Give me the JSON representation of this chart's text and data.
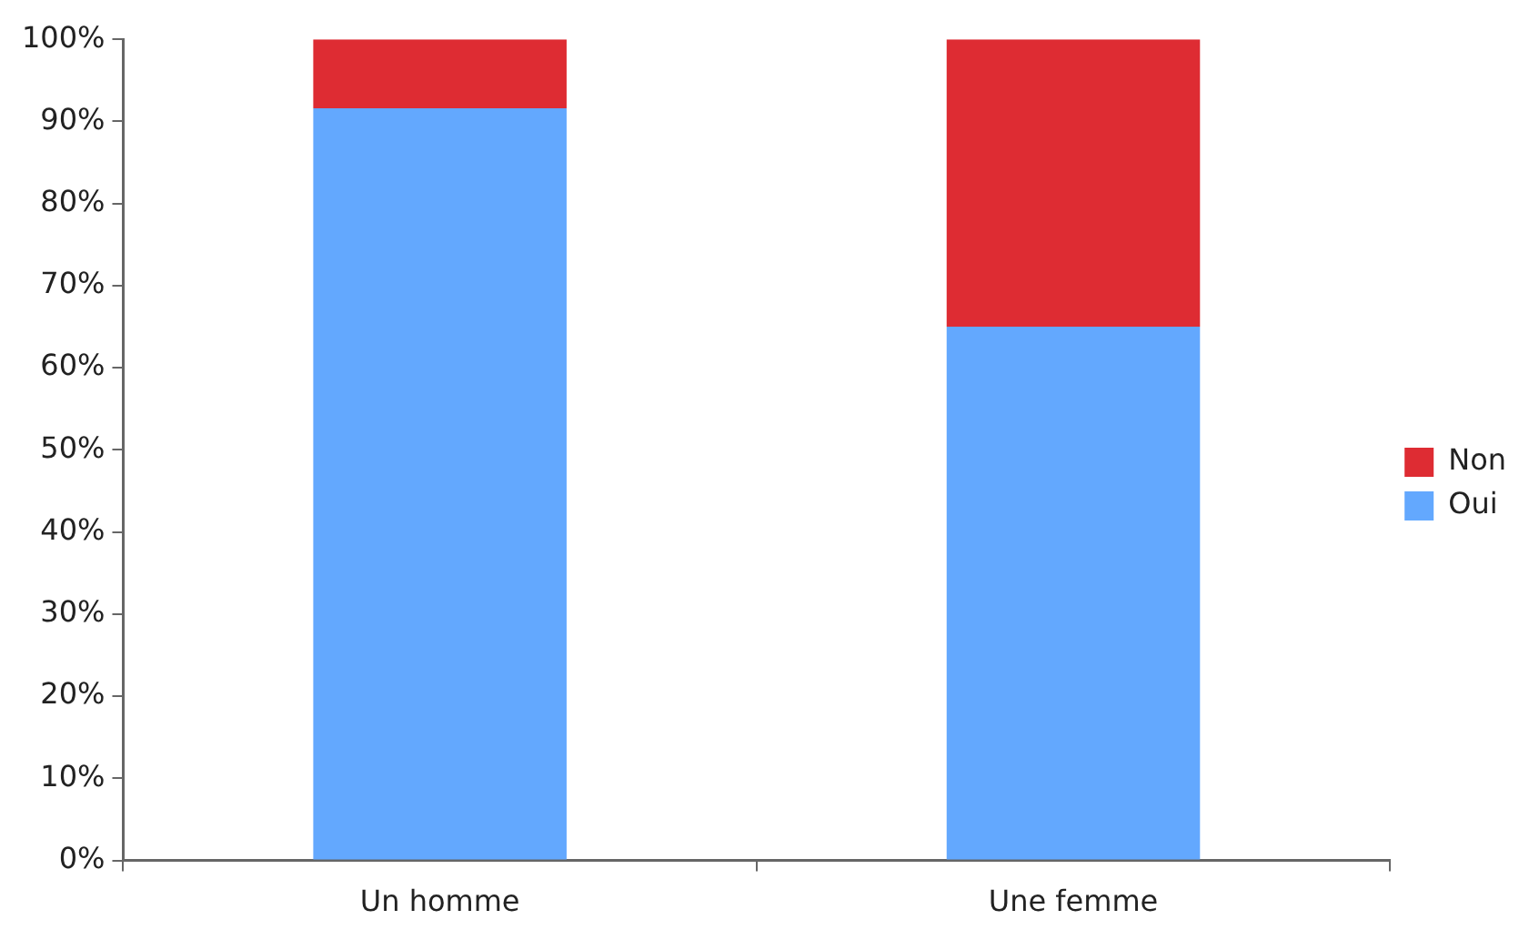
{
  "chart_data": {
    "type": "bar",
    "stacked": true,
    "categories": [
      "Un homme",
      "Une femme"
    ],
    "series": [
      {
        "name": "Oui",
        "color": "#63a8fe",
        "values": [
          91.6,
          65.0
        ]
      },
      {
        "name": "Non",
        "color": "#de2c33",
        "values": [
          8.4,
          35.0
        ]
      }
    ],
    "ylim": [
      0,
      100
    ],
    "yticks": [
      {
        "value": 0,
        "label": "0%"
      },
      {
        "value": 10,
        "label": "10%"
      },
      {
        "value": 20,
        "label": "20%"
      },
      {
        "value": 30,
        "label": "30%"
      },
      {
        "value": 40,
        "label": "40%"
      },
      {
        "value": 50,
        "label": "50%"
      },
      {
        "value": 60,
        "label": "60%"
      },
      {
        "value": 70,
        "label": "70%"
      },
      {
        "value": 80,
        "label": "80%"
      },
      {
        "value": 90,
        "label": "90%"
      },
      {
        "value": 100,
        "label": "100%"
      }
    ],
    "grid": false,
    "legend": "right"
  }
}
